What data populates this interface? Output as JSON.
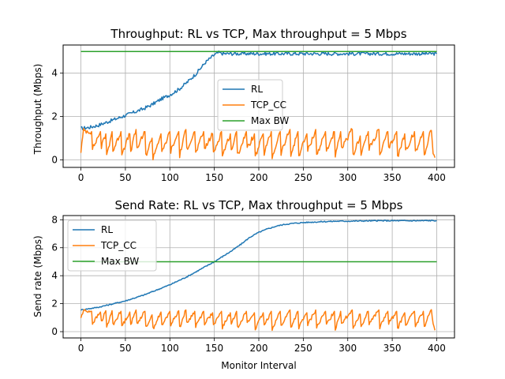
{
  "chart_data": [
    {
      "type": "line",
      "title": "Throughput: RL vs TCP, Max throughput = 5 Mbps",
      "xlabel": "",
      "ylabel": "Throughput (Mbps)",
      "xlim": [
        -20,
        420
      ],
      "ylim": [
        -0.35,
        5.3
      ],
      "xticks": [
        0,
        50,
        100,
        150,
        200,
        250,
        300,
        350,
        400
      ],
      "yticks": [
        0,
        2,
        4
      ],
      "grid": true,
      "legend": "center",
      "series": [
        {
          "name": "RL",
          "color": "#1f77b4",
          "x": [
            0,
            10,
            20,
            30,
            40,
            50,
            60,
            70,
            80,
            90,
            100,
            110,
            120,
            130,
            140,
            150,
            155,
            160,
            200,
            250,
            300,
            350,
            400
          ],
          "y": [
            1.45,
            1.5,
            1.6,
            1.75,
            1.9,
            2.05,
            2.2,
            2.35,
            2.55,
            2.8,
            3.0,
            3.25,
            3.6,
            4.0,
            4.5,
            4.85,
            4.95,
            4.9,
            4.9,
            4.9,
            4.9,
            4.9,
            4.9
          ],
          "noise": 0.08
        },
        {
          "name": "TCP_CC",
          "color": "#ff7f0e",
          "x": [
            0,
            3,
            12,
            13,
            22,
            23,
            28,
            29,
            35,
            36,
            45,
            46,
            55,
            56,
            62,
            63,
            72,
            73,
            80,
            81,
            90,
            91,
            100,
            101,
            110,
            111,
            118,
            119,
            128,
            129,
            138,
            139,
            148,
            149,
            158,
            159,
            168,
            169,
            175,
            176,
            186,
            187,
            195,
            196,
            205,
            206,
            214,
            215,
            224,
            225,
            235,
            236,
            244,
            245,
            254,
            255,
            264,
            265,
            275,
            276,
            285,
            286,
            292,
            293,
            305,
            306,
            314,
            315,
            323,
            324,
            335,
            336,
            345,
            346,
            355,
            356,
            364,
            365,
            375,
            376,
            385,
            386,
            393,
            394,
            396,
            398
          ],
          "y": [
            0.4,
            1.35,
            1.3,
            0.5,
            1.3,
            0.6,
            1.2,
            0.2,
            1.3,
            0.4,
            1.3,
            0.3,
            1.2,
            0.4,
            1.4,
            0.5,
            1.3,
            0.2,
            1.0,
            0.1,
            1.2,
            0.3,
            1.3,
            0.4,
            1.3,
            0.2,
            1.4,
            0.5,
            1.3,
            0.3,
            1.3,
            0.5,
            1.2,
            0.3,
            1.3,
            0.2,
            1.2,
            0.4,
            1.3,
            0.2,
            1.3,
            0.5,
            1.2,
            0.1,
            1.2,
            0.3,
            1.3,
            0.1,
            1.3,
            0.3,
            1.4,
            0.2,
            1.3,
            0.2,
            1.2,
            0.4,
            1.4,
            0.2,
            1.3,
            0.4,
            1.3,
            0.1,
            1.3,
            0.5,
            1.4,
            0.2,
            1.1,
            0.3,
            1.3,
            0.5,
            1.4,
            0.2,
            1.3,
            0.5,
            1.3,
            0.1,
            1.2,
            0.4,
            1.3,
            0.3,
            1.3,
            0.2,
            1.35,
            1.3,
            0.4,
            0.1
          ],
          "noise": 0.12
        },
        {
          "name": "Max BW",
          "color": "#2ca02c",
          "x": [
            0,
            400
          ],
          "y": [
            5.0,
            5.0
          ],
          "noise": 0
        }
      ]
    },
    {
      "type": "line",
      "title": "Send Rate: RL vs TCP, Max throughput = 5 Mbps",
      "xlabel": "Monitor Interval",
      "ylabel": "Send rate (Mbps)",
      "xlim": [
        -20,
        420
      ],
      "ylim": [
        -0.45,
        8.3
      ],
      "xticks": [
        0,
        50,
        100,
        150,
        200,
        250,
        300,
        350,
        400
      ],
      "yticks": [
        0,
        2,
        4,
        6,
        8
      ],
      "grid": true,
      "legend": "upper left",
      "series": [
        {
          "name": "RL",
          "color": "#1f77b4",
          "x": [
            0,
            10,
            20,
            30,
            40,
            50,
            60,
            70,
            80,
            90,
            100,
            110,
            120,
            130,
            140,
            150,
            160,
            170,
            180,
            190,
            200,
            210,
            220,
            230,
            240,
            250,
            260,
            270,
            280,
            290,
            300,
            320,
            340,
            360,
            380,
            400
          ],
          "y": [
            1.55,
            1.65,
            1.75,
            1.9,
            2.05,
            2.2,
            2.4,
            2.6,
            2.85,
            3.1,
            3.35,
            3.65,
            3.95,
            4.3,
            4.65,
            5.0,
            5.4,
            5.8,
            6.25,
            6.75,
            7.1,
            7.35,
            7.55,
            7.68,
            7.75,
            7.8,
            7.83,
            7.86,
            7.88,
            7.9,
            7.9,
            7.92,
            7.93,
            7.93,
            7.93,
            7.94
          ],
          "noise": 0.04
        },
        {
          "name": "TCP_CC",
          "color": "#ff7f0e",
          "x": [
            0,
            3,
            12,
            13,
            22,
            23,
            28,
            29,
            35,
            36,
            45,
            46,
            55,
            56,
            62,
            63,
            72,
            73,
            80,
            81,
            90,
            91,
            100,
            101,
            110,
            111,
            118,
            119,
            128,
            129,
            138,
            139,
            148,
            149,
            158,
            159,
            168,
            169,
            175,
            176,
            186,
            187,
            195,
            196,
            205,
            206,
            214,
            215,
            224,
            225,
            235,
            236,
            244,
            245,
            254,
            255,
            264,
            265,
            275,
            276,
            285,
            286,
            292,
            293,
            305,
            306,
            314,
            315,
            323,
            324,
            335,
            336,
            345,
            346,
            355,
            356,
            364,
            365,
            375,
            376,
            385,
            386,
            393,
            394,
            396,
            398
          ],
          "y": [
            1.0,
            1.5,
            1.45,
            0.6,
            1.4,
            0.7,
            1.5,
            0.3,
            1.5,
            0.5,
            1.45,
            0.4,
            1.4,
            0.5,
            1.55,
            0.6,
            1.45,
            0.3,
            1.2,
            0.2,
            1.4,
            0.4,
            1.45,
            0.5,
            1.5,
            0.3,
            1.55,
            0.6,
            1.45,
            0.4,
            1.45,
            0.6,
            1.35,
            0.4,
            1.45,
            0.3,
            1.35,
            0.5,
            1.45,
            0.3,
            1.45,
            0.6,
            1.35,
            0.2,
            1.35,
            0.4,
            1.45,
            0.2,
            1.45,
            0.4,
            1.55,
            0.3,
            1.45,
            0.3,
            1.35,
            0.5,
            1.55,
            0.3,
            1.45,
            0.5,
            1.45,
            0.2,
            1.45,
            0.6,
            1.55,
            0.3,
            1.25,
            0.4,
            1.45,
            0.6,
            1.55,
            0.3,
            1.45,
            0.6,
            1.45,
            0.2,
            1.35,
            0.5,
            1.45,
            0.4,
            1.45,
            0.3,
            1.5,
            1.45,
            0.5,
            0.1
          ],
          "noise": 0.12
        },
        {
          "name": "Max BW",
          "color": "#2ca02c",
          "x": [
            0,
            400
          ],
          "y": [
            5.0,
            5.0
          ],
          "noise": 0
        }
      ]
    }
  ]
}
